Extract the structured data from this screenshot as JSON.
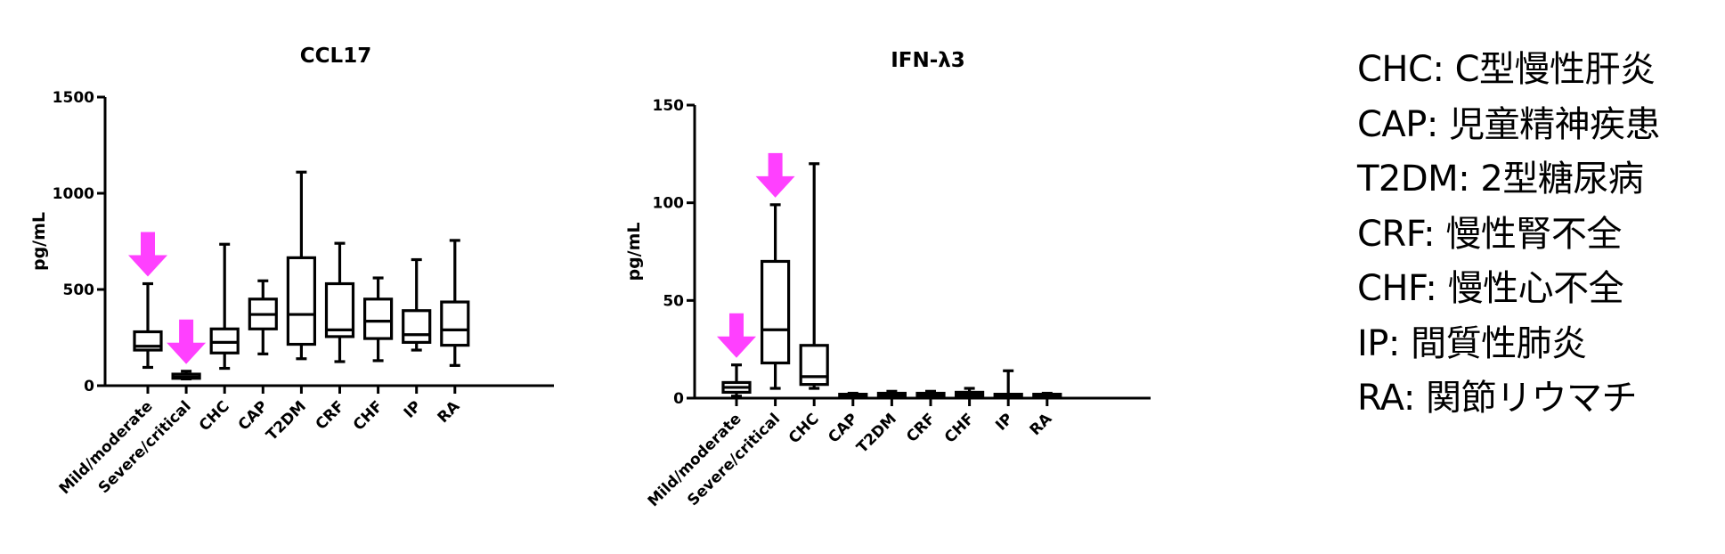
{
  "chart_data": [
    {
      "type": "box",
      "title": "CCL17",
      "ylabel": "pg/mL",
      "ylim": [
        0,
        1500
      ],
      "yticks": [
        "0",
        "500",
        "1000",
        "1500"
      ],
      "categories": [
        "Mild/moderate",
        "Severe/critical",
        "CHC",
        "CAP",
        "T2DM",
        "CRF",
        "CHF",
        "IP",
        "RA"
      ],
      "boxes": [
        {
          "min": 95,
          "q1": 185,
          "median": 205,
          "q3": 280,
          "max": 530
        },
        {
          "min": 35,
          "q1": 38,
          "median": 45,
          "q3": 60,
          "max": 75
        },
        {
          "min": 90,
          "q1": 170,
          "median": 225,
          "q3": 295,
          "max": 735
        },
        {
          "min": 165,
          "q1": 295,
          "median": 370,
          "q3": 450,
          "max": 545
        },
        {
          "min": 140,
          "q1": 215,
          "median": 370,
          "q3": 665,
          "max": 1110
        },
        {
          "min": 125,
          "q1": 255,
          "median": 290,
          "q3": 530,
          "max": 740
        },
        {
          "min": 130,
          "q1": 245,
          "median": 335,
          "q3": 450,
          "max": 560
        },
        {
          "min": 185,
          "q1": 225,
          "median": 265,
          "q3": 390,
          "max": 655
        },
        {
          "min": 105,
          "q1": 210,
          "median": 290,
          "q3": 435,
          "max": 755
        }
      ],
      "arrows_at": [
        "Mild/moderate",
        "Severe/critical"
      ]
    },
    {
      "type": "box",
      "title": "IFN-λ3",
      "ylabel": "pg/mL",
      "ylim": [
        0,
        150
      ],
      "yticks": [
        "0",
        "50",
        "100",
        "150"
      ],
      "categories": [
        "Mild/moderate",
        "Severe/critical",
        "CHC",
        "CAP",
        "T2DM",
        "CRF",
        "CHF",
        "IP",
        "RA"
      ],
      "boxes": [
        {
          "min": 1,
          "q1": 3,
          "median": 5.5,
          "q3": 8,
          "max": 17
        },
        {
          "min": 5,
          "q1": 18,
          "median": 35,
          "q3": 70,
          "max": 99
        },
        {
          "min": 5,
          "q1": 7,
          "median": 11,
          "q3": 27,
          "max": 120
        },
        {
          "min": 0.5,
          "q1": 1,
          "median": 1.5,
          "q3": 2,
          "max": 2.5
        },
        {
          "min": 0.5,
          "q1": 1,
          "median": 2,
          "q3": 2.5,
          "max": 3.5
        },
        {
          "min": 0.5,
          "q1": 1,
          "median": 2,
          "q3": 2.5,
          "max": 3.5
        },
        {
          "min": 0.5,
          "q1": 1,
          "median": 2,
          "q3": 3,
          "max": 5
        },
        {
          "min": 0.5,
          "q1": 1,
          "median": 1.5,
          "q3": 2,
          "max": 14
        },
        {
          "min": 0.5,
          "q1": 1,
          "median": 1.5,
          "q3": 2,
          "max": 2.5
        }
      ],
      "arrows_at": [
        "Mild/moderate",
        "Severe/critical"
      ]
    }
  ],
  "colors": {
    "box": "#000000",
    "arrow": "#ff40ff"
  },
  "legend": [
    "CHC: C型慢性肝炎",
    "CAP: 児童精神疾患",
    "T2DM: 2型糖尿病",
    "CRF: 慢性腎不全",
    "CHF: 慢性心不全",
    "IP: 間質性肺炎",
    "RA: 関節リウマチ"
  ]
}
